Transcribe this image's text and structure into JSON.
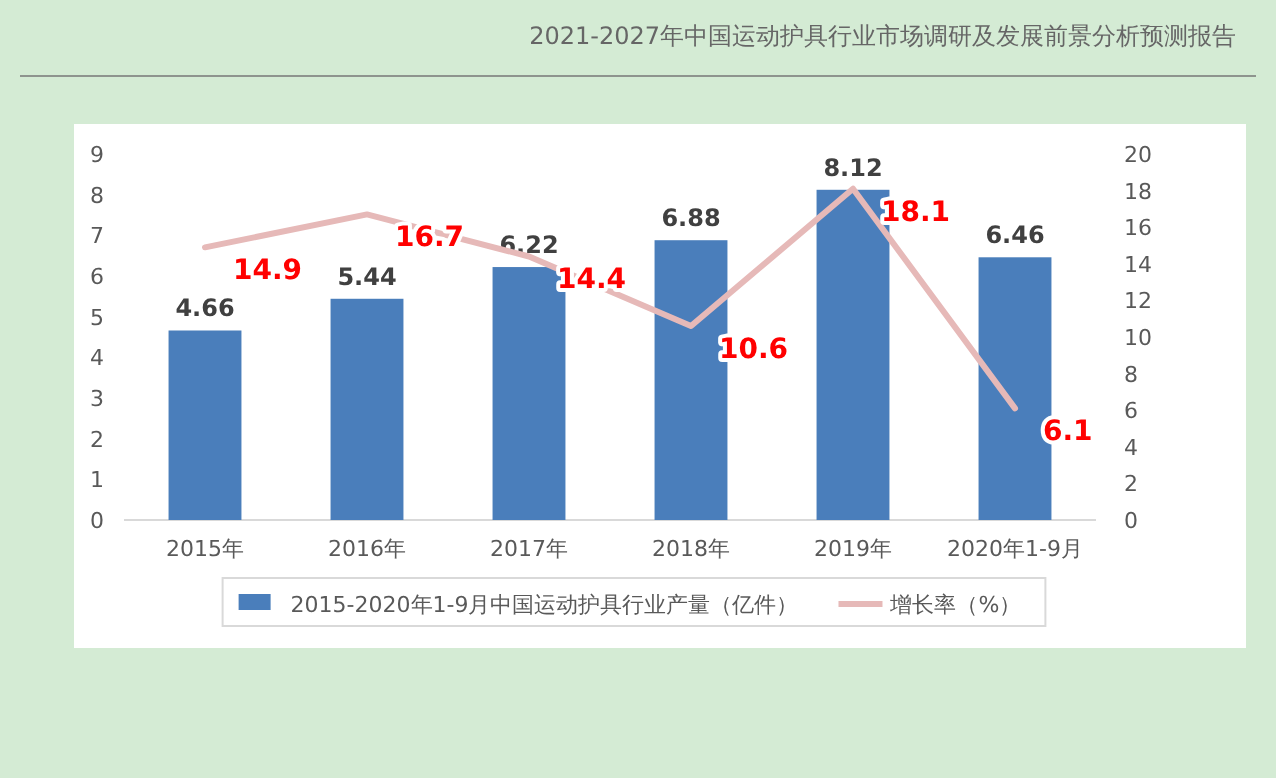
{
  "chart_data": {
    "type": "bar",
    "title": "2021-2027年中国运动护具行业市场调研及发展前景分析预测报告",
    "categories": [
      "2015年",
      "2016年",
      "2017年",
      "2018年",
      "2019年",
      "2020年1-9月"
    ],
    "series": [
      {
        "name": "2015-2020年1-9月中国运动护具行业产量（亿件）",
        "color": "#4a7ebb",
        "values": [
          4.66,
          5.44,
          6.22,
          6.88,
          8.12,
          6.46
        ]
      },
      {
        "name": "增长率（%）",
        "type": "line",
        "axis": "y2",
        "color": "#e6b9b8",
        "values": [
          14.9,
          16.7,
          14.4,
          10.6,
          18.1,
          6.1
        ]
      }
    ],
    "ylim": [
      0,
      9
    ],
    "yticks": [
      0,
      1,
      2,
      3,
      4,
      5,
      6,
      7,
      8,
      9
    ],
    "y2lim": [
      0,
      20
    ],
    "y2ticks": [
      0,
      2,
      4,
      6,
      8,
      10,
      12,
      14,
      16,
      18,
      20
    ],
    "data_labels": true,
    "legend": "bottom"
  }
}
